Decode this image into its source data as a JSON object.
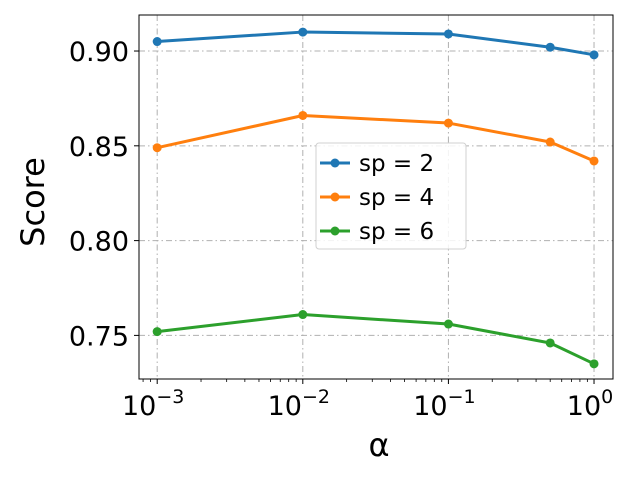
{
  "chart_data": {
    "type": "line",
    "xlabel": "α",
    "ylabel": "Score",
    "xscale": "log",
    "x": [
      0.001,
      0.01,
      0.1,
      0.5,
      1.0
    ],
    "xlim": [
      0.00075,
      1.35
    ],
    "ylim": [
      0.727,
      0.919
    ],
    "xticks": [
      {
        "value": 0.001,
        "base": "10",
        "exp": "−3"
      },
      {
        "value": 0.01,
        "base": "10",
        "exp": "−2"
      },
      {
        "value": 0.1,
        "base": "10",
        "exp": "−1"
      },
      {
        "value": 1.0,
        "base": "10",
        "exp": "0"
      }
    ],
    "yticks": [
      {
        "value": 0.75,
        "label": "0.75"
      },
      {
        "value": 0.8,
        "label": "0.80"
      },
      {
        "value": 0.85,
        "label": "0.85"
      },
      {
        "value": 0.9,
        "label": "0.90"
      }
    ],
    "grid": true,
    "legend_position": "center-right",
    "series": [
      {
        "name": "sp = 2",
        "color": "#1f77b4",
        "values": [
          0.905,
          0.91,
          0.909,
          0.902,
          0.898
        ]
      },
      {
        "name": "sp = 4",
        "color": "#ff7f0e",
        "values": [
          0.849,
          0.866,
          0.862,
          0.852,
          0.842
        ]
      },
      {
        "name": "sp = 6",
        "color": "#2ca02c",
        "values": [
          0.752,
          0.761,
          0.756,
          0.746,
          0.735
        ]
      }
    ]
  }
}
